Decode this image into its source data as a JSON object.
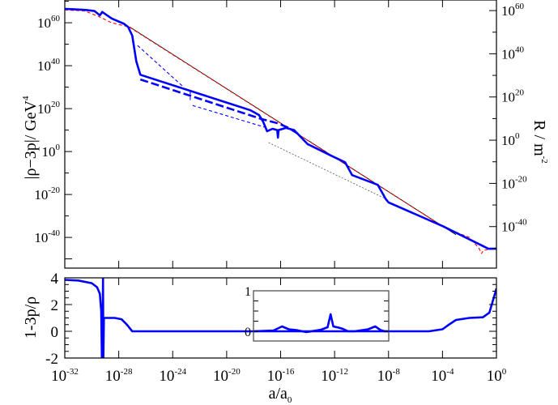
{
  "chart_data": [
    {
      "type": "line",
      "panel": "top",
      "xlabel": "",
      "ylabel": "|ρ−3p|/ GeV^4",
      "ylabel_right": "R / m^-2",
      "x_scale": "log",
      "y_scale": "log",
      "xlim": [
        1e-32,
        1
      ],
      "ylim": [
        5e-55,
        4e+70
      ],
      "ylim_right": [
        6e-60,
        8e+64
      ],
      "x_ticks": [
        1e-32,
        1e-28,
        1e-24,
        1e-20,
        1e-16,
        1e-12,
        1e-08,
        0.0001,
        1
      ],
      "y_tick_labels": [
        "10^60",
        "10^40",
        "10^20",
        "10^0",
        "10^-20",
        "10^-40"
      ],
      "y_tick_values": [
        1e+60,
        1e+40,
        1e+20,
        1,
        1e-20,
        1e-40
      ],
      "y_right_tick_labels": [
        "10^60",
        "10^40",
        "10^20",
        "10^0",
        "10^-20",
        "10^-40"
      ],
      "y_right_tick_values": [
        1e+60,
        1e+40,
        1e+20,
        1,
        1e-20,
        1e-40
      ],
      "grid": false,
      "series": [
        {
          "style": "solid-thin",
          "color": "#000000",
          "segments": [
            [
              [
                6.3e-28,
                1.3e+58
              ],
              [
                0.001,
                2e-39
              ]
            ]
          ]
        },
        {
          "style": "dotted-thin",
          "color": "#555555",
          "segments": [
            [
              [
                1.3e-17,
                16000.0
              ],
              [
                6e-09,
                1e-22
              ]
            ]
          ]
        },
        {
          "style": "dashed-thin",
          "color": "#ff0000",
          "segments": [
            [
              [
                1e-32,
                1e+66
              ],
              [
                3e-31,
                3e+65
              ],
              [
                3e-30,
                1e+63
              ],
              [
                3e-29,
                1e+60
              ],
              [
                6e-28,
                1e+58
              ],
              [
                0.0001,
                2e-35
              ],
              [
                0.0006,
                1e-37
              ],
              [
                0.01,
                1e-40
              ],
              [
                0.05,
                1e-45
              ],
              [
                0.079,
                3e-48
              ],
              [
                0.11,
                1e-46
              ],
              [
                0.3,
                3e-46
              ],
              [
                1,
                3e-46
              ]
            ]
          ]
        },
        {
          "style": "dashed-thin",
          "color": "#0000ff",
          "segments": [
            [
              [
                2.5e-27,
                2.5e+49
              ],
              [
                6e-24,
                1.6e+30
              ]
            ],
            [
              [
                2e-23,
                1e+28
              ],
              [
                2e-23,
                1e+24
              ]
            ],
            [
              [
                3e-23,
                3e+21
              ],
              [
                1e-17,
                100000000000.0
              ]
            ]
          ]
        },
        {
          "style": "dashed-thick",
          "color": "#0000ff",
          "segments": [
            [
              [
                4e-27,
                4e+33
              ],
              [
                4e-18,
                1300000000000000.0
              ],
              [
                6e-17,
                16000000000000.0
              ],
              [
                4e-16,
                100000000000.0
              ],
              [
                3e-15,
                30000000.0
              ]
            ]
          ]
        },
        {
          "style": "solid-thick",
          "color": "#0000ff",
          "segments": [
            [
              [
                1e-32,
                3e+66
              ],
              [
                3e-31,
                1e+66
              ],
              [
                1.6e-30,
                3e+65
              ],
              [
                4e-30,
                3e+63
              ],
              [
                6e-30,
                1e+65
              ],
              [
                3e-29,
                1e+62
              ],
              [
                2.5e-28,
                3e+59
              ],
              [
                5e-28,
                1e+58
              ],
              [
                1e-27,
                1e+54
              ],
              [
                2e-27,
                1e+42
              ],
              [
                4e-27,
                6e+35
              ],
              [
                6e-19,
                1.6e+19
              ],
              [
                2.5e-18,
                1e+17
              ],
              [
                5e-18,
                100000000000000.0
              ],
              [
                1e-17,
                3000000000.0
              ],
              [
                2.5e-17,
                40000000000.0
              ],
              [
                5.6e-17,
                10000000000.0
              ],
              [
                6.3e-17,
                3000000.0
              ],
              [
                7e-17,
                10000000000.0
              ],
              [
                2.5e-16,
                100000000000.0
              ],
              [
                1e-15,
                10000000000.0
              ],
              [
                1e-14,
                3000.0
              ],
              [
                6e-13,
                0.01
              ],
              [
                6e-12,
                1e-05
              ],
              [
                2e-11,
                1e-11
              ],
              [
                1.6e-09,
                3e-16
              ],
              [
                6e-09,
                1e-22
              ],
              [
                1e-08,
                2e-24
              ],
              [
                0.0001,
                2e-35
              ],
              [
                0.25,
                5e-46
              ],
              [
                1,
                5e-46
              ]
            ]
          ]
        }
      ]
    },
    {
      "type": "line",
      "panel": "bottom",
      "xlabel": "a/a_0",
      "ylabel": "1-3p/ρ",
      "x_scale": "log",
      "xlim": [
        1e-32,
        1
      ],
      "ylim": [
        -2,
        4
      ],
      "x_tick_labels": [
        "10^-32",
        "10^-28",
        "10^-24",
        "10^-20",
        "10^-16",
        "10^-12",
        "10^-8",
        "10^-4",
        "10^0"
      ],
      "x_tick_values": [
        1e-32,
        1e-28,
        1e-24,
        1e-20,
        1e-16,
        1e-12,
        1e-08,
        0.0001,
        1
      ],
      "y_tick_labels": [
        "4",
        "2",
        "0",
        "-2"
      ],
      "y_tick_values": [
        4,
        2,
        0,
        -2
      ],
      "grid": false,
      "series": [
        {
          "style": "solid-thick",
          "color": "#0000ff",
          "points": [
            [
              1e-32,
              3.85
            ],
            [
              1e-31,
              3.8
            ],
            [
              1e-30,
              3.6
            ],
            [
              2.5e-30,
              3.3
            ],
            [
              4e-30,
              2.8
            ],
            [
              5e-30,
              1.5
            ],
            [
              5.6e-30,
              -2
            ],
            [
              6.3e-30,
              -2
            ],
            [
              6.8e-30,
              4
            ],
            [
              7.2e-30,
              -2
            ],
            [
              7.9e-30,
              1
            ],
            [
              5e-29,
              1
            ],
            [
              1.6e-28,
              0.9
            ],
            [
              4e-28,
              0.5
            ],
            [
              1e-27,
              0
            ],
            [
              1e-05,
              0
            ],
            [
              0.0001,
              0.15
            ],
            [
              0.0003,
              0.5
            ],
            [
              0.001,
              0.85
            ],
            [
              0.01,
              1
            ],
            [
              0.1,
              1.05
            ],
            [
              0.3,
              1.4
            ],
            [
              1,
              3.2
            ]
          ]
        }
      ],
      "inset": {
        "xlim": [
          1e-18,
          1e-08
        ],
        "ylim": [
          -0.24,
          1
        ],
        "y_tick_labels": [
          "1",
          "0"
        ],
        "y_tick_values": [
          1,
          0
        ],
        "series": [
          {
            "style": "solid-thick",
            "color": "#0000ff",
            "points": [
              [
                1e-18,
                0
              ],
              [
                3e-17,
                0.02
              ],
              [
                1.3e-16,
                0.12
              ],
              [
                4e-16,
                0.05
              ],
              [
                1.5e-15,
                0.03
              ],
              [
                8e-15,
                -0.02
              ],
              [
                1e-13,
                0.04
              ],
              [
                3e-13,
                0.1
              ],
              [
                5e-13,
                0.42
              ],
              [
                8e-13,
                0.12
              ],
              [
                2e-12,
                0.09
              ],
              [
                4e-12,
                0.06
              ],
              [
                1e-11,
                0.0
              ],
              [
                3e-11,
                0.0
              ],
              [
                3e-10,
                0.05
              ],
              [
                1e-09,
                0.12
              ],
              [
                2.5e-09,
                0.03
              ],
              [
                5e-09,
                0
              ],
              [
                1e-08,
                0
              ]
            ]
          }
        ]
      }
    }
  ]
}
